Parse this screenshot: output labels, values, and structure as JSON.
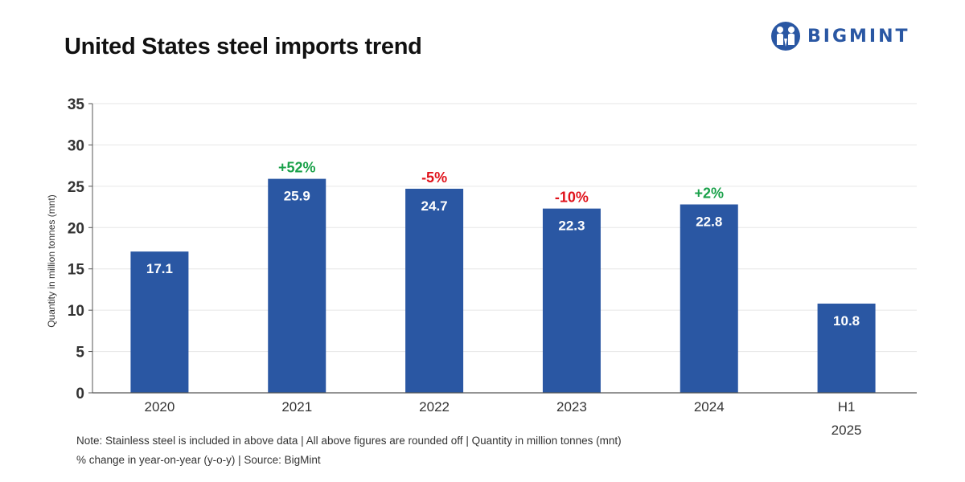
{
  "title": "United States steel imports trend",
  "logo": {
    "text": "BIGMINT",
    "icon": "bigmint-people-icon",
    "color": "#2a57a3"
  },
  "notes": [
    "Note: Stainless steel is included in above data | All above figures are rounded off | Quantity in million tonnes (mnt)",
    "% change in year-on-year (y-o-y) | Source: BigMint"
  ],
  "colors": {
    "bar": "#2a57a3",
    "positive": "#1aa14a",
    "negative": "#e0121b",
    "grid": "#e6e6e6",
    "axis": "#555555"
  },
  "chart_data": {
    "type": "bar",
    "title": "United States steel imports trend",
    "xlabel": "",
    "ylabel": "Quantity in million tonnes (mnt)",
    "ylim": [
      0,
      35
    ],
    "yticks": [
      0,
      5,
      10,
      15,
      20,
      25,
      30,
      35
    ],
    "grid": true,
    "categories": [
      "2020",
      "2021",
      "2022",
      "2023",
      "2024",
      "H1\n2025"
    ],
    "values": [
      17.1,
      25.9,
      24.7,
      22.3,
      22.8,
      10.8
    ],
    "value_labels": [
      "17.1",
      "25.9",
      "24.7",
      "22.3",
      "22.8",
      "10.8"
    ],
    "yoy_change": [
      null,
      "+52%",
      "-5%",
      "-10%",
      "+2%",
      null
    ]
  }
}
